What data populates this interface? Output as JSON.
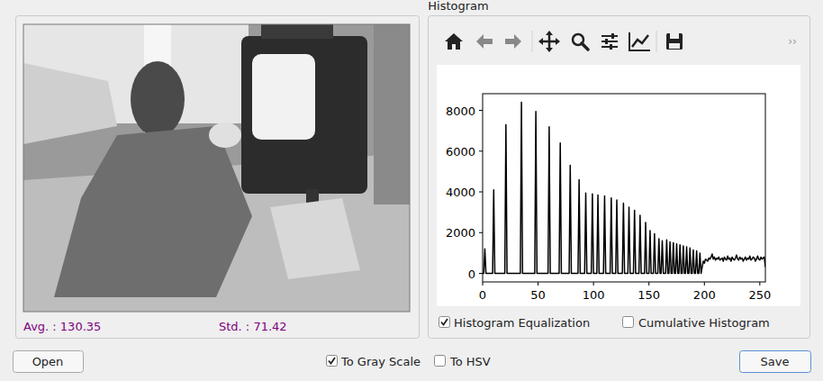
{
  "window": {
    "title": "Histogram"
  },
  "image_panel": {
    "avg_label": "Avg. : 130.35",
    "std_label": "Std. : 71.42"
  },
  "toolbar": {
    "overflow": "››"
  },
  "chart_options": [
    {
      "label": "Histogram Equalization",
      "checked": true
    },
    {
      "label": "Cumulative Histogram",
      "checked": false
    }
  ],
  "controls": {
    "open_button": "Open",
    "save_button": "Save",
    "options": [
      {
        "label": "To Gray Scale",
        "checked": true
      },
      {
        "label": "To HSV",
        "checked": false
      }
    ]
  },
  "chart_data": {
    "type": "line",
    "color": "#000000",
    "grid": false,
    "xlim": [
      0,
      255
    ],
    "ylim": [
      -420,
      8820
    ],
    "xticks": [
      0,
      50,
      100,
      150,
      200,
      250
    ],
    "yticks": [
      0,
      2000,
      4000,
      6000,
      8000
    ],
    "x": [
      0,
      1,
      2,
      3,
      9,
      10,
      11,
      20,
      21,
      22,
      34,
      35,
      36,
      47,
      48,
      49,
      59,
      60,
      61,
      69,
      70,
      71,
      78,
      79,
      80,
      86,
      87,
      88,
      92,
      93,
      94,
      98,
      99,
      100,
      103,
      104,
      105,
      109,
      110,
      111,
      115,
      116,
      117,
      120,
      121,
      122,
      126,
      127,
      128,
      131,
      132,
      133,
      136,
      137,
      138,
      141,
      142,
      143,
      146,
      147,
      148,
      150,
      151,
      152,
      154,
      155,
      156,
      158,
      159,
      160,
      161,
      162,
      163,
      165,
      166,
      167,
      168,
      169,
      170,
      171,
      172,
      173,
      174,
      175,
      176,
      177,
      178,
      179,
      180,
      181,
      182,
      183,
      184,
      185,
      186,
      187,
      188,
      189,
      190,
      191,
      192,
      193,
      194,
      195,
      196,
      197,
      198,
      199,
      200,
      201,
      202,
      203,
      204,
      205,
      206,
      207,
      208,
      209,
      210,
      211,
      212,
      213,
      214,
      215,
      216,
      217,
      218,
      219,
      220,
      221,
      222,
      223,
      224,
      225,
      226,
      227,
      228,
      229,
      230,
      231,
      232,
      233,
      234,
      235,
      236,
      237,
      238,
      239,
      240,
      241,
      242,
      243,
      244,
      245,
      246,
      247,
      248,
      249,
      250,
      251,
      252,
      253,
      254,
      255
    ],
    "values": [
      0,
      0,
      1200,
      0,
      0,
      4100,
      0,
      0,
      7300,
      0,
      0,
      8400,
      0,
      0,
      7950,
      0,
      0,
      7200,
      0,
      0,
      6400,
      0,
      0,
      5300,
      0,
      0,
      4600,
      0,
      0,
      3950,
      0,
      0,
      3900,
      0,
      0,
      3850,
      0,
      0,
      3800,
      0,
      0,
      3700,
      0,
      0,
      3600,
      0,
      0,
      3450,
      0,
      0,
      3250,
      0,
      0,
      3100,
      0,
      0,
      2850,
      0,
      0,
      2500,
      0,
      0,
      2100,
      0,
      0,
      1950,
      0,
      0,
      1700,
      0,
      0,
      1600,
      0,
      0,
      1650,
      0,
      0,
      1550,
      0,
      0,
      1500,
      0,
      0,
      1450,
      0,
      0,
      1400,
      0,
      0,
      1350,
      0,
      0,
      1300,
      0,
      0,
      1250,
      0,
      0,
      1150,
      0,
      0,
      1100,
      0,
      0,
      1000,
      0,
      300,
      600,
      500,
      700,
      650,
      600,
      750,
      700,
      800,
      950,
      700,
      800,
      650,
      750,
      700,
      800,
      650,
      700,
      750,
      600,
      800,
      700,
      650,
      850,
      700,
      750,
      600,
      800,
      700,
      650,
      750,
      900,
      700,
      650,
      800,
      700,
      750,
      600,
      700,
      800,
      650,
      750,
      700,
      850,
      650,
      700,
      800,
      750,
      600,
      700,
      850,
      700,
      650,
      800,
      700,
      750,
      800,
      300
    ]
  }
}
